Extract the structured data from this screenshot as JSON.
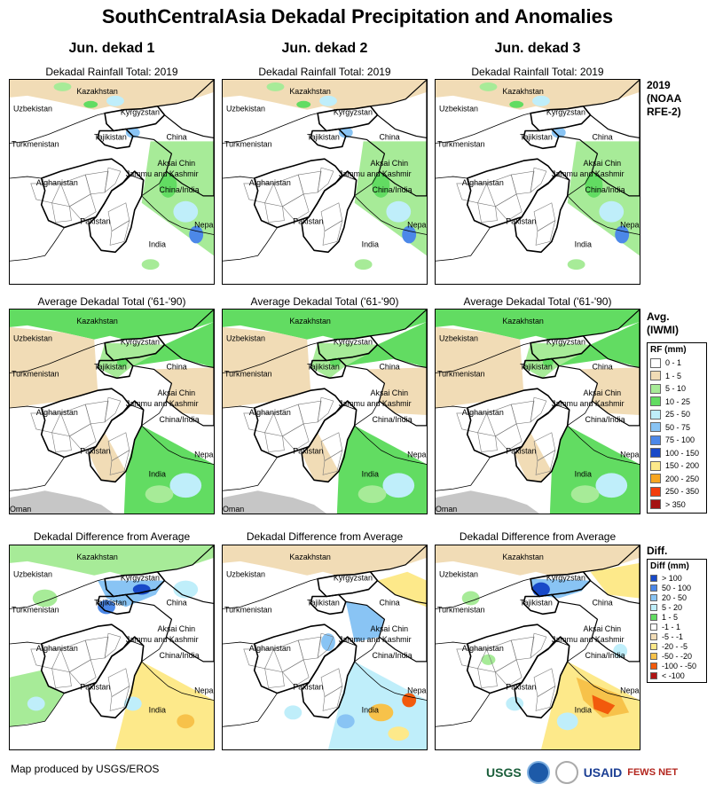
{
  "title": "SouthCentralAsia Dekadal Precipitation and Anomalies",
  "columns": [
    "Jun. dekad 1",
    "Jun. dekad 2",
    "Jun. dekad 3"
  ],
  "row_titles": {
    "rainfall": "Dekadal Rainfall Total: 2019",
    "average": "Average Dekadal Total ('61-'90)",
    "difference": "Dekadal Difference from Average"
  },
  "row_labels": {
    "rainfall": [
      "2019",
      "(NOAA",
      "RFE-2)"
    ],
    "average": [
      "Avg.",
      "(IWMI)"
    ],
    "difference": [
      "Diff."
    ]
  },
  "map_labels": [
    "Kazakhstan",
    "Uzbekistan",
    "Kyrgyzstan",
    "Tajikistan",
    "Turkmenistan",
    "China",
    "Aksai Chin",
    "Jammu and Kashmir",
    "China/India",
    "Afghanistan",
    "Pakistan",
    "India",
    "Nepal",
    "Oman"
  ],
  "rf_legend": {
    "title": "RF (mm)",
    "items": [
      {
        "label": "0 - 1",
        "color": "#ffffff"
      },
      {
        "label": "1 - 5",
        "color": "#f1dcb6"
      },
      {
        "label": "5 - 10",
        "color": "#a7eb98"
      },
      {
        "label": "10 - 25",
        "color": "#62dc62"
      },
      {
        "label": "25 - 50",
        "color": "#bfeefa"
      },
      {
        "label": "50 - 75",
        "color": "#89c4f4"
      },
      {
        "label": "75 - 100",
        "color": "#4c88e8"
      },
      {
        "label": "100 - 150",
        "color": "#1849c8"
      },
      {
        "label": "150 - 200",
        "color": "#fde98a"
      },
      {
        "label": "200 - 250",
        "color": "#f7a621"
      },
      {
        "label": "250 - 350",
        "color": "#f23d0c"
      },
      {
        "label": "> 350",
        "color": "#a41212"
      }
    ]
  },
  "diff_legend": {
    "title": "Diff (mm)",
    "items": [
      {
        "label": "> 100",
        "color": "#1849c8"
      },
      {
        "label": "50 - 100",
        "color": "#4c88e8"
      },
      {
        "label": "20 - 50",
        "color": "#89c4f4"
      },
      {
        "label": "5 - 20",
        "color": "#bfeefa"
      },
      {
        "label": "1 - 5",
        "color": "#62dc62"
      },
      {
        "label": "-1 - 1",
        "color": "#ffffff"
      },
      {
        "label": "-5 - -1",
        "color": "#f1dcb6"
      },
      {
        "label": "-20 - -5",
        "color": "#fde98a"
      },
      {
        "label": "-50 - -20",
        "color": "#f7c24a"
      },
      {
        "label": "-100 - -50",
        "color": "#f25a0c"
      },
      {
        "label": "< -100",
        "color": "#b01515"
      }
    ]
  },
  "footer": "Map produced by USGS/EROS",
  "logos": [
    "USGS",
    "USAID",
    "FEWS NET"
  ]
}
